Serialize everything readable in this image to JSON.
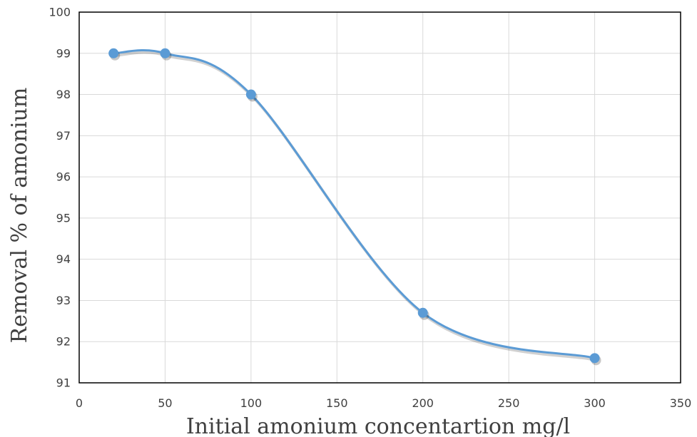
{
  "chart_data": {
    "type": "line",
    "smooth": true,
    "title": "",
    "xlabel": "Initial amonium concentartion mg/l",
    "ylabel": "Removal % of amonium",
    "xlim": [
      0,
      350
    ],
    "ylim": [
      91,
      100
    ],
    "xticks": [
      0,
      50,
      100,
      150,
      200,
      250,
      300,
      350
    ],
    "yticks": [
      91,
      92,
      93,
      94,
      95,
      96,
      97,
      98,
      99,
      100
    ],
    "grid": true,
    "legend": "none",
    "series": [
      {
        "color": "#5b9bd5",
        "x": [
          20,
          50,
          100,
          200,
          300
        ],
        "y": [
          99.0,
          99.0,
          98.0,
          92.7,
          91.6
        ]
      }
    ]
  }
}
